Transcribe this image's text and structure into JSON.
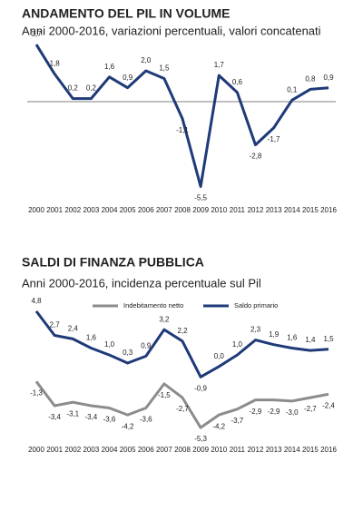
{
  "chart_data": [
    {
      "type": "line",
      "title": "ANDAMENTO DEL PIL IN VOLUME",
      "subtitle": "Anni 2000-2016, variazioni percentuali, valori concatenati",
      "categories": [
        "2000",
        "2001",
        "2002",
        "2003",
        "2004",
        "2005",
        "2006",
        "2007",
        "2008",
        "2009",
        "2010",
        "2011",
        "2012",
        "2013",
        "2014",
        "2015",
        "2016"
      ],
      "ylim": [
        -6,
        4
      ],
      "zero_line": true,
      "series": [
        {
          "color": "#1f3a78",
          "values": [
            3.7,
            1.8,
            0.2,
            0.2,
            1.6,
            0.9,
            2.0,
            1.5,
            -1.1,
            -5.5,
            1.7,
            0.6,
            -2.8,
            -1.7,
            0.1,
            0.8,
            0.9
          ],
          "value_labels": [
            "3,7",
            "1,8",
            "0,2",
            "0,2",
            "1,6",
            "0,9",
            "2,0",
            "1,5",
            "-1,1",
            "-5,5",
            "1,7",
            "0,6",
            "-2,8",
            "-1,7",
            "0,1",
            "0,8",
            "0,9"
          ]
        }
      ]
    },
    {
      "type": "line",
      "title": "SALDI DI FINANZA PUBBLICA",
      "subtitle": "Anni 2000-2016, incidenza percentuale sul Pil",
      "categories": [
        "2000",
        "2001",
        "2002",
        "2003",
        "2004",
        "2005",
        "2006",
        "2007",
        "2008",
        "2009",
        "2010",
        "2011",
        "2012",
        "2013",
        "2014",
        "2015",
        "2016"
      ],
      "ylim": [
        -6,
        5.5
      ],
      "zero_line": false,
      "series": [
        {
          "name": "Indebitamento netto",
          "color": "#8c8c8c",
          "values": [
            -1.3,
            -3.4,
            -3.1,
            -3.4,
            -3.6,
            -4.2,
            -3.6,
            -1.5,
            -2.7,
            -5.3,
            -4.2,
            -3.7,
            -2.9,
            -2.9,
            -3.0,
            -2.7,
            -2.4
          ],
          "value_labels": [
            "-1,3",
            "-3,4",
            "-3,1",
            "-3,4",
            "-3,6",
            "-4,2",
            "-3,6",
            "-1,5",
            "-2,7",
            "-5,3",
            "-4,2",
            "-3,7",
            "-2,9",
            "-2,9",
            "-3,0",
            "-2,7",
            "-2,4"
          ]
        },
        {
          "name": "Saldo primario",
          "color": "#1f3a78",
          "values": [
            4.8,
            2.7,
            2.4,
            1.6,
            1.0,
            0.3,
            0.9,
            3.2,
            2.2,
            -0.9,
            0.0,
            1.0,
            2.3,
            1.9,
            1.6,
            1.4,
            1.5
          ],
          "value_labels": [
            "4,8",
            "2,7",
            "2,4",
            "1,6",
            "1,0",
            "0,3",
            "0,9",
            "3,2",
            "2,2",
            "-0,9",
            "0,0",
            "1,0",
            "2,3",
            "1,9",
            "1,6",
            "1,4",
            "1,5"
          ]
        }
      ]
    }
  ]
}
